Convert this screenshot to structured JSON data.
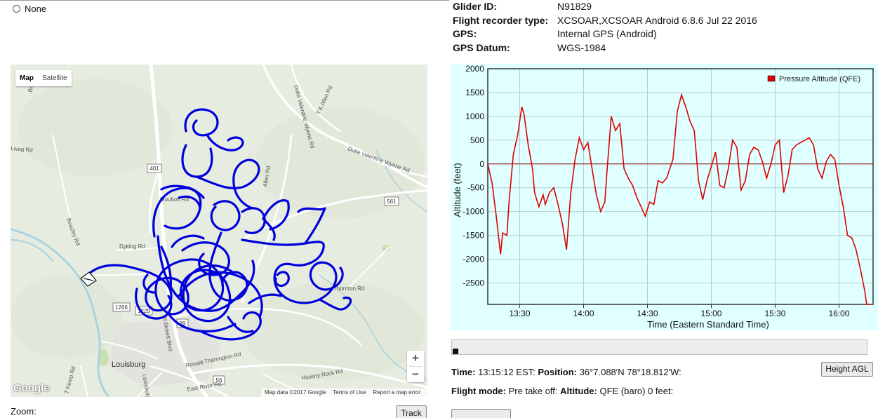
{
  "radio": {
    "label": "None"
  },
  "flight_info": [
    {
      "key": "Glider ID:",
      "value": "N91829"
    },
    {
      "key": "Flight recorder type:",
      "value": "XCSOAR,XCSOAR Android 6.8.6 Jul 22 2016"
    },
    {
      "key": "GPS:",
      "value": "Internal GPS (Android)"
    },
    {
      "key": "GPS Datum:",
      "value": "WGS-1984"
    }
  ],
  "map": {
    "type_map_label": "Map",
    "type_satellite_label": "Satellite",
    "zoom_in_label": "+",
    "zoom_out_label": "−",
    "google_logo": "Google",
    "footer": {
      "map_data": "Map data ©2017 Google",
      "terms": "Terms of Use",
      "report": "Report a map error"
    },
    "labels": {
      "town": "Louisburg",
      "road_n_bickett": "N Bickett Blvd",
      "road_dyking": "Dyking Rd",
      "road_moulton": "Moulton Rd",
      "road_duke1": "Duke Valentine Wynne Rd",
      "road_duke2": "Duke Valentine Wynne Rd",
      "road_tk_allen": "T K Allen Rd",
      "road_allen": "Allen Rd",
      "road_beasley": "Beasley Rd",
      "road_ronald": "Ronald Tharrington Rd",
      "road_hickory": "Hickory Rock Rd",
      "road_east_river": "East River Rd",
      "road_t_kemp": "T Kemp Rd",
      "road_louisburg": "Louisburg Rd",
      "road_thornton": "Thornton Rd",
      "road_lwog": "Lwog Rd",
      "road_bree": "Bree",
      "shield_401": "401",
      "shield_561": "561",
      "shield_56": "56",
      "shield_1266": "1266",
      "shield_1229": "1229",
      "shield_39": "39"
    },
    "colors": {
      "track": "#0000dd",
      "land": "#e7ece0",
      "water": "#aad3df",
      "road": "#ffffff",
      "park": "#c8dfb4"
    }
  },
  "chart_data": {
    "type": "line",
    "title": "",
    "xlabel": "Time (Eastern Standard Time)",
    "ylabel": "Altitude (feet)",
    "x_ticks": [
      "13:30",
      "14:00",
      "14:30",
      "15:00",
      "15:30",
      "16:00"
    ],
    "y_ticks": [
      2000,
      1500,
      1000,
      500,
      0,
      -500,
      -1000,
      -1500,
      -2000,
      -2500
    ],
    "xlim": [
      "13:15",
      "16:16"
    ],
    "ylim": [
      -2950,
      2000
    ],
    "legend_position": "top-right",
    "background": "#e0ffff",
    "series": [
      {
        "name": "Pressure Altitude (QFE)",
        "color": "#dd0000",
        "x": [
          "13:15",
          "13:17",
          "13:19",
          "13:21",
          "13:22",
          "13:24",
          "13:25",
          "13:27",
          "13:29",
          "13:31",
          "13:32",
          "13:34",
          "13:36",
          "13:37",
          "13:39",
          "13:41",
          "13:42",
          "13:44",
          "13:46",
          "13:48",
          "13:50",
          "13:52",
          "13:54",
          "13:56",
          "13:58",
          "14:00",
          "14:02",
          "14:04",
          "14:06",
          "14:08",
          "14:10",
          "14:11",
          "14:13",
          "14:15",
          "14:17",
          "14:19",
          "14:21",
          "14:23",
          "14:25",
          "14:27",
          "14:29",
          "14:31",
          "14:33",
          "14:35",
          "14:37",
          "14:39",
          "14:42",
          "14:44",
          "14:46",
          "14:48",
          "14:50",
          "14:52",
          "14:54",
          "14:56",
          "14:58",
          "15:00",
          "15:02",
          "15:04",
          "15:06",
          "15:08",
          "15:10",
          "15:12",
          "15:14",
          "15:16",
          "15:18",
          "15:20",
          "15:22",
          "15:24",
          "15:26",
          "15:28",
          "15:30",
          "15:32",
          "15:34",
          "15:36",
          "15:38",
          "15:40",
          "15:42",
          "15:44",
          "15:46",
          "15:48",
          "15:50",
          "15:52",
          "15:54",
          "15:56",
          "15:58",
          "16:00",
          "16:02",
          "16:04",
          "16:06",
          "16:08",
          "16:10",
          "16:12",
          "16:13",
          "16:15"
        ],
        "values": [
          0,
          -400,
          -1100,
          -1900,
          -1450,
          -1500,
          -800,
          200,
          600,
          1200,
          1050,
          400,
          -100,
          -600,
          -900,
          -650,
          -850,
          -600,
          -500,
          -850,
          -1250,
          -1800,
          -600,
          100,
          550,
          300,
          450,
          -100,
          -650,
          -1000,
          -800,
          -150,
          1000,
          700,
          850,
          -100,
          -300,
          -450,
          -700,
          -900,
          -1100,
          -800,
          -850,
          -350,
          -400,
          -300,
          100,
          1100,
          1450,
          1200,
          900,
          700,
          -350,
          -750,
          -350,
          -50,
          250,
          -450,
          -500,
          -100,
          500,
          350,
          -550,
          -350,
          200,
          350,
          300,
          50,
          -300,
          0,
          400,
          500,
          -600,
          -250,
          300,
          400,
          450,
          500,
          550,
          400,
          -100,
          -300,
          50,
          200,
          100,
          -450,
          -900,
          -1500,
          -1550,
          -1800,
          -2200,
          -2650,
          -2950,
          -2950
        ]
      }
    ]
  },
  "zoom_label": "Zoom:",
  "track_button": "Track",
  "status": {
    "time_label": "Time:",
    "time_value": "13:15:12 EST:",
    "position_label": "Position:",
    "position_value": "36°7.088′N 78°18.812′W:",
    "mode_label": "Flight mode:",
    "mode_value": "Pre take off:",
    "altitude_label": "Altitude:",
    "altitude_value": "QFE (baro) 0 feet:"
  },
  "height_button": "Height AGL",
  "timeline": {
    "position_fraction": 0.0
  }
}
